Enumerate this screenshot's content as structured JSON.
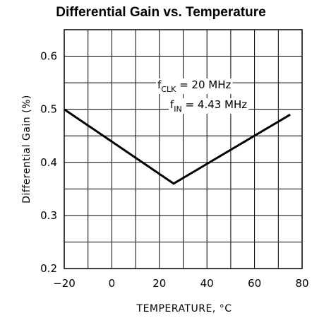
{
  "chart_data": {
    "type": "line",
    "title": "Differential Gain vs. Temperature",
    "xlabel": "TEMPERATURE, °C",
    "ylabel": "Differential Gain (%)",
    "xlim": [
      -20,
      80
    ],
    "ylim": [
      0.2,
      0.65
    ],
    "grid": true,
    "x_ticks": [
      -20,
      0,
      20,
      40,
      60,
      80
    ],
    "x_tick_labels": [
      "−20",
      "0",
      "20",
      "40",
      "60",
      "80"
    ],
    "y_ticks": [
      0.2,
      0.3,
      0.4,
      0.5,
      0.6
    ],
    "y_tick_labels": [
      "0.2",
      "0.3",
      "0.4",
      "0.5",
      "0.6"
    ],
    "series": [
      {
        "x": [
          -20,
          26,
          75
        ],
        "y": [
          0.5,
          0.36,
          0.49
        ]
      }
    ],
    "annotations": [
      {
        "main": "f",
        "sub": "CLK",
        "rest": " = 20 MHz"
      },
      {
        "main": "f",
        "sub": "IN",
        "rest": " = 4.43 MHz"
      }
    ]
  }
}
